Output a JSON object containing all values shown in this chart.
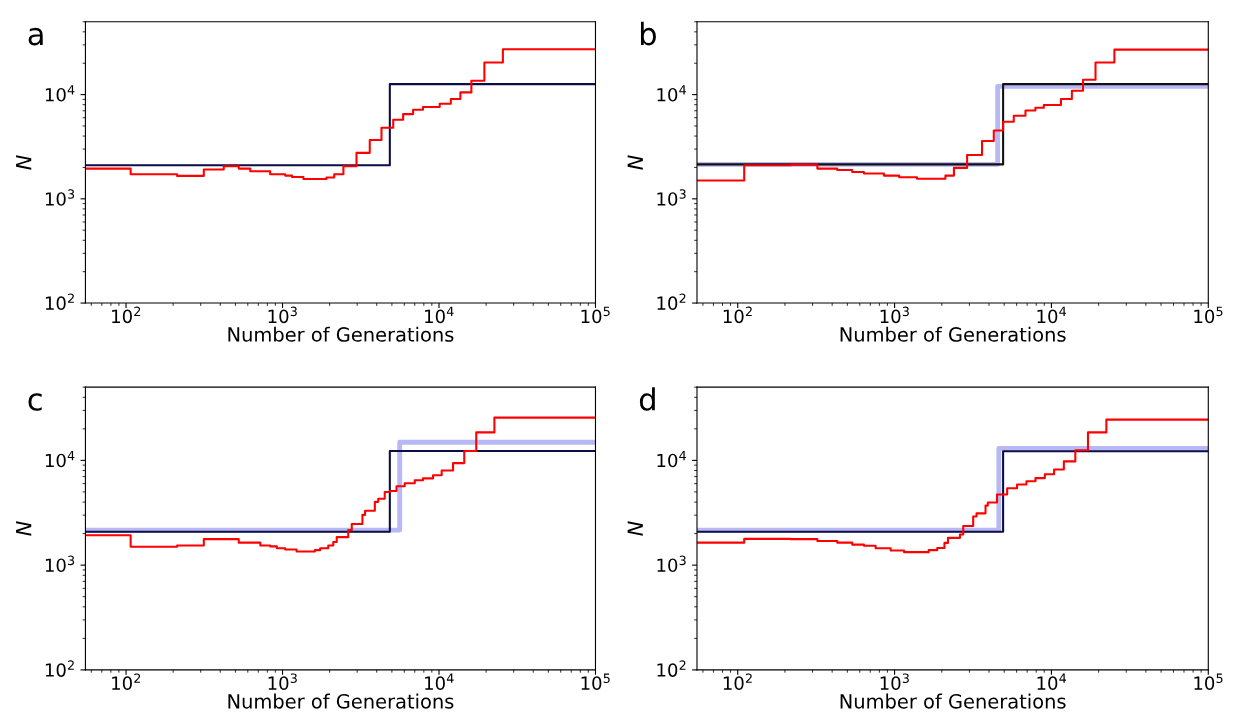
{
  "chart_data": [
    {
      "type": "step",
      "title": "a",
      "xlabel": "Number of Generations",
      "ylabel": "N",
      "log": "xy",
      "grid": false,
      "xlim": [
        55,
        100000
      ],
      "ylim": [
        100,
        50000
      ],
      "xticks": [
        {
          "value": 100,
          "label": "10$^{2}$"
        },
        {
          "value": 1000,
          "label": "10$^{3}$"
        },
        {
          "value": 10000,
          "label": "10$^{4}$"
        },
        {
          "value": 100000,
          "label": "10$^{5}$"
        }
      ],
      "yticks": [
        {
          "value": 100,
          "label": "10$^{2}$"
        },
        {
          "value": 1000,
          "label": "10$^{3}$"
        },
        {
          "value": 10000,
          "label": "10$^{4}$"
        }
      ],
      "series": [
        {
          "color": "#0d0d4a",
          "x": [
            55,
            4850,
            100000
          ],
          "values": [
            2100,
            12600,
            12600
          ]
        },
        {
          "color": "#ff0000",
          "x": [
            55,
            107,
            212,
            314,
            421,
            525,
            622,
            834,
            1040,
            1150,
            1360,
            1910,
            2140,
            2450,
            2970,
            3610,
            4290,
            5100,
            5900,
            6830,
            7900,
            10100,
            11900,
            13700,
            16100,
            19500,
            25600,
            100000
          ],
          "values": [
            1950,
            1720,
            1660,
            1910,
            2050,
            1950,
            1840,
            1720,
            1670,
            1620,
            1550,
            1600,
            1720,
            2050,
            2760,
            3670,
            4800,
            5730,
            6500,
            7160,
            7600,
            8180,
            9080,
            10500,
            13600,
            20300,
            27200,
            27200
          ]
        }
      ]
    },
    {
      "type": "step",
      "title": "b",
      "xlabel": "Number of Generations",
      "ylabel": "N",
      "log": "xy",
      "grid": false,
      "xlim": [
        55,
        100000
      ],
      "ylim": [
        100,
        50000
      ],
      "xticks": [
        {
          "value": 100,
          "label": "10$^{2}$"
        },
        {
          "value": 1000,
          "label": "10$^{3}$"
        },
        {
          "value": 10000,
          "label": "10$^{4}$"
        },
        {
          "value": 100000,
          "label": "10$^{5}$"
        }
      ],
      "yticks": [
        {
          "value": 100,
          "label": "10$^{2}$"
        },
        {
          "value": 1000,
          "label": "10$^{3}$"
        },
        {
          "value": 10000,
          "label": "10$^{4}$"
        }
      ],
      "series": [
        {
          "color": "#b8b8f5",
          "x": [
            55,
            4540,
            100000
          ],
          "values": [
            2140,
            12000,
            12000
          ]
        },
        {
          "color": "#111111",
          "x": [
            55,
            4920,
            100000
          ],
          "values": [
            2140,
            12600,
            12600
          ]
        },
        {
          "color": "#ff0000",
          "x": [
            55,
            110,
            218,
            322,
            431,
            537,
            638,
            855,
            1070,
            1390,
            2110,
            2390,
            2900,
            3610,
            4290,
            4920,
            5750,
            6830,
            7900,
            8940,
            11500,
            13500,
            15900,
            19100,
            25200,
            100000
          ],
          "values": [
            1500,
            2100,
            2130,
            1950,
            1890,
            1810,
            1750,
            1670,
            1610,
            1560,
            1670,
            1980,
            2630,
            3590,
            4520,
            5490,
            6270,
            7050,
            7480,
            7940,
            9080,
            10900,
            13900,
            20300,
            27000,
            27000
          ]
        }
      ]
    },
    {
      "type": "step",
      "title": "c",
      "xlabel": "Number of Generations",
      "ylabel": "N",
      "log": "xy",
      "grid": false,
      "xlim": [
        55,
        100000
      ],
      "ylim": [
        100,
        50000
      ],
      "xticks": [
        {
          "value": 100,
          "label": "10$^{2}$"
        },
        {
          "value": 1000,
          "label": "10$^{3}$"
        },
        {
          "value": 10000,
          "label": "10$^{4}$"
        },
        {
          "value": 100000,
          "label": "10$^{5}$"
        }
      ],
      "yticks": [
        {
          "value": 100,
          "label": "10$^{2}$"
        },
        {
          "value": 1000,
          "label": "10$^{3}$"
        },
        {
          "value": 10000,
          "label": "10$^{4}$"
        }
      ],
      "series": [
        {
          "color": "#b8b8f5",
          "x": [
            55,
            5610,
            100000
          ],
          "values": [
            2160,
            14900,
            14900
          ]
        },
        {
          "color": "#0d0d4a",
          "x": [
            55,
            4850,
            100000
          ],
          "values": [
            2080,
            12300,
            12300
          ]
        },
        {
          "color": "#ff0000",
          "x": [
            55,
            107,
            212,
            314,
            525,
            721,
            834,
            920,
            1040,
            1230,
            1610,
            1740,
            1960,
            2110,
            2220,
            2630,
            2770,
            3240,
            3370,
            3890,
            4090,
            4500,
            4850,
            5350,
            6040,
            7000,
            7900,
            9160,
            10400,
            12300,
            14500,
            17300,
            22600,
            100000
          ],
          "values": [
            1930,
            1500,
            1540,
            1770,
            1640,
            1540,
            1510,
            1450,
            1410,
            1350,
            1390,
            1450,
            1540,
            1660,
            1850,
            2160,
            2470,
            3020,
            3310,
            4020,
            4300,
            4990,
            5100,
            5660,
            6050,
            6470,
            6730,
            7200,
            8000,
            9420,
            12300,
            18500,
            25600,
            25600
          ]
        }
      ]
    },
    {
      "type": "step",
      "title": "d",
      "xlabel": "Number of Generations",
      "ylabel": "N",
      "log": "xy",
      "grid": false,
      "xlim": [
        55,
        100000
      ],
      "ylim": [
        100,
        50000
      ],
      "xticks": [
        {
          "value": 100,
          "label": "10$^{2}$"
        },
        {
          "value": 1000,
          "label": "10$^{3}$"
        },
        {
          "value": 10000,
          "label": "10$^{4}$"
        },
        {
          "value": 100000,
          "label": "10$^{5}$"
        }
      ],
      "yticks": [
        {
          "value": 100,
          "label": "10$^{2}$"
        },
        {
          "value": 1000,
          "label": "10$^{3}$"
        },
        {
          "value": 10000,
          "label": "10$^{4}$"
        }
      ],
      "series": [
        {
          "color": "#b8b8f5",
          "x": [
            55,
            4620,
            100000
          ],
          "values": [
            2160,
            13000,
            13000
          ]
        },
        {
          "color": "#0d0d4a",
          "x": [
            55,
            4920,
            100000
          ],
          "values": [
            2080,
            12200,
            12200
          ]
        },
        {
          "color": "#ff0000",
          "x": [
            55,
            110,
            218,
            322,
            431,
            537,
            638,
            757,
            944,
            1150,
            1650,
            1870,
            2080,
            2190,
            2610,
            2740,
            3170,
            3330,
            3800,
            3930,
            4500,
            5220,
            6040,
            6930,
            7910,
            9080,
            10400,
            12000,
            14200,
            17100,
            22400,
            100000
          ],
          "values": [
            1640,
            1780,
            1770,
            1700,
            1640,
            1570,
            1530,
            1450,
            1380,
            1330,
            1390,
            1460,
            1630,
            1820,
            1960,
            2360,
            2910,
            3120,
            3700,
            3960,
            4730,
            5420,
            5890,
            6330,
            6770,
            7360,
            8170,
            9780,
            12500,
            18500,
            24500,
            24500
          ]
        }
      ]
    }
  ]
}
